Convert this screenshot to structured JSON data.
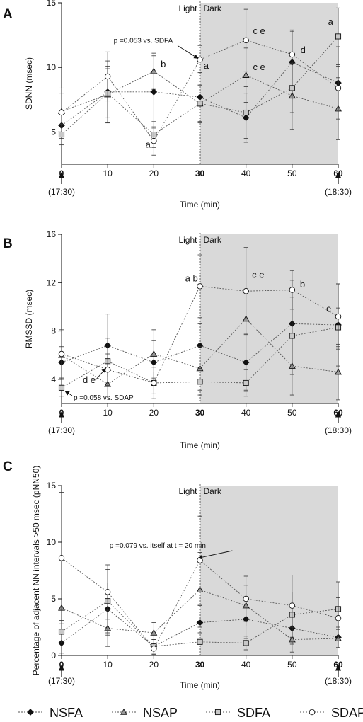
{
  "legend": {
    "items": [
      {
        "label": "NSFA",
        "marker": "diamond",
        "fill": "#111111"
      },
      {
        "label": "NSAP",
        "marker": "triangle",
        "fill": "#999999"
      },
      {
        "label": "SDFA",
        "marker": "square",
        "fill": "#c8c8c8"
      },
      {
        "label": "SDAP",
        "marker": "circle",
        "fill": "#ffffff"
      }
    ]
  },
  "colors": {
    "dark_region": "#d9d9d9",
    "line": "#555555",
    "axis": "#111111"
  },
  "chart_data": [
    {
      "id": "A",
      "panel_letter": "A",
      "type": "line",
      "ylabel": "SDNN (msec)",
      "xlabel": "Time (min)",
      "x": [
        0,
        10,
        20,
        30,
        40,
        50,
        60
      ],
      "xlim": [
        0,
        60
      ],
      "ylim": [
        2.5,
        15
      ],
      "yticks": [
        5,
        10,
        15
      ],
      "xticks": [
        0,
        10,
        20,
        30,
        40,
        50,
        60
      ],
      "light_label": "Light",
      "dark_label": "Dark",
      "dark_from": 30,
      "start_time": "(17:30)",
      "end_time": "(18:30)",
      "series": [
        {
          "name": "NSFA",
          "values": [
            5.5,
            8.1,
            8.1,
            7.7,
            6.1,
            10.4,
            8.8
          ],
          "err": [
            1.0,
            2.4,
            2.8,
            1.9,
            1.9,
            2.4,
            2.8
          ]
        },
        {
          "name": "NSAP",
          "values": [
            6.6,
            7.9,
            9.7,
            7.2,
            9.4,
            7.8,
            6.8
          ],
          "err": [
            1.8,
            2.2,
            1.4,
            1.5,
            2.1,
            2.6,
            2.4
          ]
        },
        {
          "name": "SDFA",
          "values": [
            4.8,
            8.0,
            4.8,
            7.2,
            6.5,
            8.4,
            12.4
          ],
          "err": [
            0.8,
            1.9,
            1.0,
            1.4,
            2.0,
            1.9,
            2.2
          ]
        },
        {
          "name": "SDAP",
          "values": [
            6.5,
            9.3,
            4.3,
            10.6,
            12.1,
            11.0,
            8.4
          ],
          "err": [
            1.5,
            1.9,
            1.1,
            1.1,
            2.4,
            1.9,
            1.7
          ]
        }
      ],
      "annotations": [
        {
          "text": "b",
          "x": 21.5,
          "y": 10.0
        },
        {
          "text": "a",
          "x": 18.2,
          "y": 3.8
        },
        {
          "text": "a",
          "x": 30.8,
          "y": 9.9
        },
        {
          "text": "c e",
          "x": 41.5,
          "y": 12.6
        },
        {
          "text": "c e",
          "x": 41.5,
          "y": 9.8
        },
        {
          "text": "d",
          "x": 51.8,
          "y": 11.1
        },
        {
          "text": "a",
          "x": 57.8,
          "y": 13.3
        },
        {
          "text": "p =0.053 vs. SDFA",
          "x": 11.3,
          "y": 11.9,
          "arrow_to": [
            29.6,
            10.7
          ]
        }
      ]
    },
    {
      "id": "B",
      "panel_letter": "B",
      "type": "line",
      "ylabel": "RMSSD (msec)",
      "xlabel": "Time (min)",
      "x": [
        0,
        10,
        20,
        30,
        40,
        50,
        60
      ],
      "xlim": [
        0,
        60
      ],
      "ylim": [
        2,
        16
      ],
      "yticks": [
        4,
        8,
        12,
        16
      ],
      "xticks": [
        0,
        10,
        20,
        30,
        40,
        50,
        60
      ],
      "light_label": "Light",
      "dark_label": "Dark",
      "dark_from": 30,
      "start_time": "(17:30)",
      "end_time": "(18:30)",
      "series": [
        {
          "name": "NSFA",
          "values": [
            5.4,
            6.8,
            5.4,
            6.8,
            5.4,
            8.6,
            8.5
          ],
          "err": [
            1.3,
            2.6,
            1.8,
            1.8,
            2.4,
            3.6,
            3.4
          ]
        },
        {
          "name": "NSAP",
          "values": [
            6.0,
            3.6,
            6.1,
            4.9,
            9.0,
            5.1,
            4.6
          ],
          "err": [
            2.0,
            1.0,
            2.0,
            1.8,
            5.9,
            2.4,
            2.3
          ]
        },
        {
          "name": "SDFA",
          "values": [
            3.3,
            5.5,
            3.7,
            3.8,
            3.7,
            7.6,
            8.3
          ],
          "err": [
            0.7,
            1.9,
            1.3,
            1.1,
            1.1,
            3.2,
            1.6
          ]
        },
        {
          "name": "SDAP",
          "values": [
            6.1,
            4.8,
            3.7,
            11.7,
            11.3,
            11.4,
            9.2
          ],
          "err": [
            2.0,
            1.3,
            0.9,
            2.6,
            3.6,
            1.6,
            2.7
          ]
        }
      ],
      "annotations": [
        {
          "text": "a b",
          "x": 26.8,
          "y": 12.1
        },
        {
          "text": "c e",
          "x": 41.3,
          "y": 12.4
        },
        {
          "text": "b",
          "x": 51.7,
          "y": 11.6
        },
        {
          "text": "e",
          "x": 57.4,
          "y": 9.6
        },
        {
          "text": "d e",
          "x": 4.6,
          "y": 3.7,
          "arrow_to": [
            9.6,
            4.9
          ]
        },
        {
          "text": "p =0.058 vs. SDAP",
          "x": 2.6,
          "y": 2.3,
          "arrow_to": [
            0.8,
            3.0
          ]
        }
      ]
    },
    {
      "id": "C",
      "panel_letter": "C",
      "type": "line",
      "ylabel": "Percentage of adjacent NN intervals >50 msec (pNN50)",
      "xlabel": "Time (min)",
      "x": [
        0,
        10,
        20,
        30,
        40,
        50,
        60
      ],
      "xlim": [
        0,
        60
      ],
      "ylim": [
        0,
        15
      ],
      "yticks": [
        0,
        5,
        10,
        15
      ],
      "xticks": [
        0,
        10,
        20,
        30,
        40,
        50,
        60
      ],
      "light_label": "Light",
      "dark_label": "Dark",
      "dark_from": 30,
      "start_time": "(17:30)",
      "end_time": "(18:30)",
      "series": [
        {
          "name": "NSFA",
          "values": [
            1.1,
            4.1,
            0.8,
            2.9,
            3.2,
            2.4,
            1.6
          ],
          "err": [
            0.9,
            2.3,
            0.6,
            1.5,
            1.7,
            1.4,
            0.9
          ]
        },
        {
          "name": "NSAP",
          "values": [
            4.2,
            2.4,
            2.0,
            5.8,
            4.4,
            1.4,
            1.5
          ],
          "err": [
            2.2,
            1.6,
            0.9,
            3.3,
            1.8,
            1.1,
            0.8
          ]
        },
        {
          "name": "SDFA",
          "values": [
            2.1,
            4.8,
            0.8,
            1.2,
            1.1,
            3.6,
            4.1
          ],
          "err": [
            1.0,
            2.8,
            0.6,
            0.8,
            0.6,
            2.0,
            2.4
          ]
        },
        {
          "name": "SDAP",
          "values": [
            8.6,
            5.6,
            0.6,
            8.4,
            5.0,
            4.4,
            3.3
          ],
          "err": [
            5.8,
            2.4,
            0.5,
            3.9,
            2.0,
            2.7,
            1.8
          ]
        }
      ],
      "annotations": [
        {
          "text": "p =0.079 vs. itself at t = 20 min",
          "x": 10.4,
          "y": 9.5,
          "arrow_to": [
            29.6,
            8.6
          ]
        }
      ]
    }
  ]
}
